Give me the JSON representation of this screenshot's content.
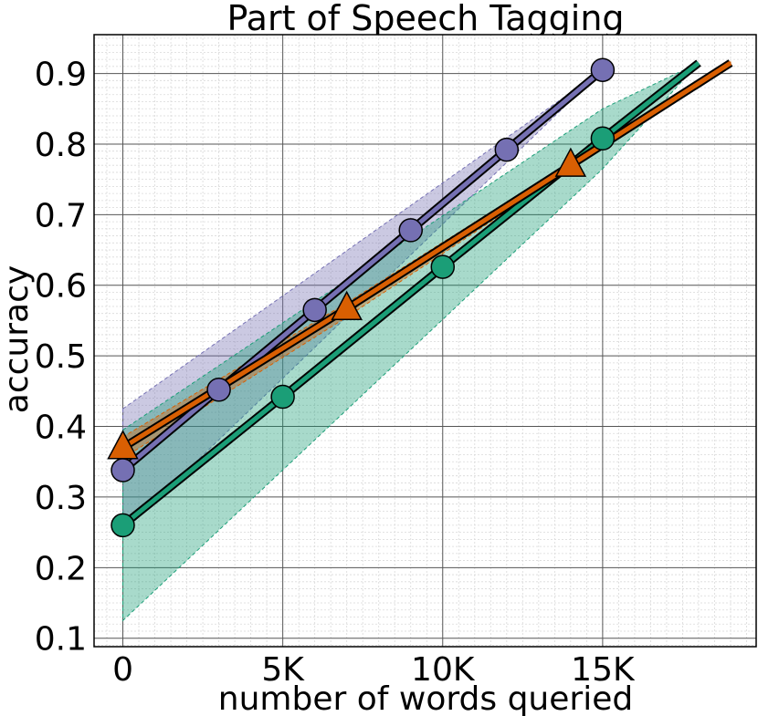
{
  "chart_data": {
    "type": "line",
    "title": "Part of Speech Tagging",
    "xlabel": "number of words queried",
    "ylabel": "accuracy",
    "xlim": [
      -900,
      19800
    ],
    "ylim": [
      0.088,
      0.955
    ],
    "x_ticks": [
      0,
      5000,
      10000,
      15000
    ],
    "x_tick_labels": [
      "0",
      "5K",
      "10K",
      "15K"
    ],
    "y_ticks": [
      0.1,
      0.2,
      0.3,
      0.4,
      0.5,
      0.6,
      0.7,
      0.8,
      0.9
    ],
    "y_tick_labels": [
      "0.1",
      "0.2",
      "0.3",
      "0.4",
      "0.5",
      "0.6",
      "0.7",
      "0.8",
      "0.9"
    ],
    "grid": true,
    "minor_grid": true,
    "legend": "none",
    "series": [
      {
        "color": "#7570b3",
        "marker": "circle",
        "x": [
          0,
          3000,
          6000,
          9000,
          12000,
          15000
        ],
        "y": [
          0.338,
          0.452,
          0.565,
          0.678,
          0.792,
          0.905
        ],
        "band_upper": [
          0.425,
          null,
          null,
          null,
          null,
          0.905
        ],
        "band_lower": [
          0.25,
          null,
          null,
          null,
          null,
          0.905
        ]
      },
      {
        "color": "#1b9e77",
        "marker": "circle",
        "x": [
          0,
          5000,
          10000,
          15000,
          18000
        ],
        "y": [
          0.26,
          0.442,
          0.626,
          0.808,
          0.915
        ],
        "band_upper": [
          0.395,
          null,
          null,
          0.85,
          0.915
        ],
        "band_lower": [
          0.125,
          null,
          null,
          0.765,
          0.915
        ]
      },
      {
        "color": "#d95f02",
        "marker": "triangle",
        "x": [
          0,
          7000,
          14000,
          19000
        ],
        "y": [
          0.37,
          0.567,
          0.77,
          0.915
        ],
        "band_upper": [
          0.385,
          0.575,
          0.775,
          0.918
        ],
        "band_lower": [
          0.355,
          0.555,
          0.765,
          0.912
        ]
      }
    ]
  }
}
